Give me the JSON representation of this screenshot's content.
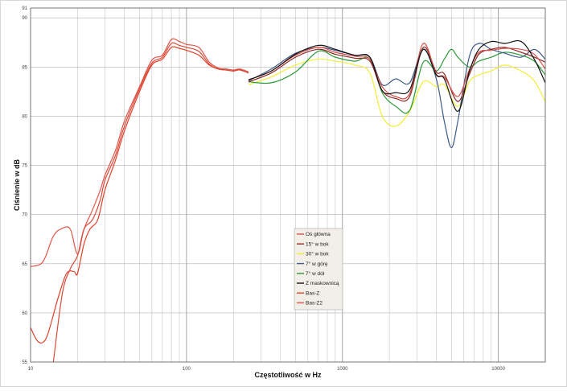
{
  "chart_data": {
    "type": "line",
    "xlabel": "Częstotliwość w Hz",
    "ylabel": "Ciśnienie w dB",
    "xscale": "log",
    "xlim": [
      10,
      20000
    ],
    "ylim": [
      55,
      91
    ],
    "x_ticks": [
      10,
      100,
      1000,
      10000
    ],
    "x_tick_labels": [
      "10",
      "100",
      "1000",
      "10000"
    ],
    "y_ticks": [
      55,
      60,
      65,
      70,
      75,
      80,
      85,
      90,
      91
    ],
    "y_tick_labels": [
      "55",
      "60",
      "65",
      "70",
      "75",
      "80",
      "85",
      "90",
      "91"
    ],
    "grid": true,
    "legend": {
      "position": "center-bottom"
    },
    "series": [
      {
        "name": "Oś główna",
        "color": "#d8504a",
        "points": [
          [
            250,
            83.7
          ],
          [
            350,
            84.6
          ],
          [
            500,
            86.2
          ],
          [
            700,
            87.0
          ],
          [
            900,
            86.5
          ],
          [
            1200,
            86.1
          ],
          [
            1500,
            85.8
          ],
          [
            1800,
            83.0
          ],
          [
            2200,
            82.0
          ],
          [
            2700,
            82.3
          ],
          [
            3300,
            87.4
          ],
          [
            4000,
            84.3
          ],
          [
            4500,
            84.0
          ],
          [
            5500,
            82.0
          ],
          [
            6500,
            84.7
          ],
          [
            7500,
            86.5
          ],
          [
            9000,
            86.7
          ],
          [
            11000,
            86.9
          ],
          [
            14000,
            86.8
          ],
          [
            17000,
            86.3
          ],
          [
            20000,
            84.8
          ]
        ]
      },
      {
        "name": "15° w bok",
        "color": "#8c2a26",
        "points": [
          [
            250,
            83.5
          ],
          [
            350,
            84.4
          ],
          [
            500,
            86.0
          ],
          [
            700,
            86.8
          ],
          [
            900,
            86.3
          ],
          [
            1200,
            85.9
          ],
          [
            1500,
            85.6
          ],
          [
            1800,
            82.6
          ],
          [
            2200,
            81.8
          ],
          [
            2700,
            82.0
          ],
          [
            3300,
            87.0
          ],
          [
            4000,
            84.5
          ],
          [
            4500,
            84.3
          ],
          [
            5500,
            81.5
          ],
          [
            6500,
            84.2
          ],
          [
            7500,
            86.3
          ],
          [
            9000,
            86.8
          ],
          [
            11000,
            87.0
          ],
          [
            14000,
            86.5
          ],
          [
            17000,
            86.0
          ],
          [
            20000,
            85.5
          ]
        ]
      },
      {
        "name": "30° w bok",
        "color": "#f2ee3a",
        "points": [
          [
            250,
            83.2
          ],
          [
            350,
            84.0
          ],
          [
            500,
            85.2
          ],
          [
            700,
            85.8
          ],
          [
            900,
            85.6
          ],
          [
            1200,
            85.2
          ],
          [
            1500,
            84.4
          ],
          [
            1800,
            80.0
          ],
          [
            2200,
            79.0
          ],
          [
            2700,
            80.5
          ],
          [
            3300,
            83.5
          ],
          [
            4000,
            83.0
          ],
          [
            4500,
            83.2
          ],
          [
            5500,
            81.0
          ],
          [
            6500,
            83.5
          ],
          [
            7500,
            84.2
          ],
          [
            9000,
            84.6
          ],
          [
            11000,
            85.2
          ],
          [
            14000,
            84.6
          ],
          [
            17000,
            83.6
          ],
          [
            20000,
            81.5
          ]
        ]
      },
      {
        "name": "7° w górę",
        "color": "#3e5a86",
        "points": [
          [
            250,
            83.6
          ],
          [
            350,
            84.8
          ],
          [
            500,
            86.4
          ],
          [
            700,
            87.0
          ],
          [
            900,
            86.7
          ],
          [
            1200,
            86.2
          ],
          [
            1500,
            86.0
          ],
          [
            1800,
            83.2
          ],
          [
            2200,
            83.8
          ],
          [
            2700,
            83.4
          ],
          [
            3300,
            86.8
          ],
          [
            4000,
            83.8
          ],
          [
            4500,
            79.5
          ],
          [
            5000,
            76.8
          ],
          [
            5500,
            79.5
          ],
          [
            6500,
            86.0
          ],
          [
            7500,
            87.4
          ],
          [
            9000,
            86.8
          ],
          [
            11000,
            86.4
          ],
          [
            14000,
            86.0
          ],
          [
            17000,
            86.8
          ],
          [
            20000,
            85.8
          ]
        ]
      },
      {
        "name": "7° w dół",
        "color": "#2e9a3a",
        "points": [
          [
            250,
            83.5
          ],
          [
            350,
            83.4
          ],
          [
            500,
            84.5
          ],
          [
            700,
            86.6
          ],
          [
            900,
            86.0
          ],
          [
            1200,
            85.6
          ],
          [
            1500,
            85.8
          ],
          [
            1800,
            82.4
          ],
          [
            2200,
            81.0
          ],
          [
            2700,
            80.6
          ],
          [
            3300,
            85.5
          ],
          [
            4000,
            84.6
          ],
          [
            4500,
            85.8
          ],
          [
            5000,
            86.8
          ],
          [
            5500,
            86.0
          ],
          [
            6500,
            85.0
          ],
          [
            7500,
            85.6
          ],
          [
            9000,
            86.0
          ],
          [
            11000,
            86.5
          ],
          [
            14000,
            86.2
          ],
          [
            17000,
            85.6
          ],
          [
            20000,
            84.2
          ]
        ]
      },
      {
        "name": "Z maskownicą",
        "color": "#111111",
        "points": [
          [
            250,
            83.7
          ],
          [
            350,
            84.6
          ],
          [
            500,
            86.3
          ],
          [
            700,
            87.2
          ],
          [
            900,
            86.8
          ],
          [
            1200,
            86.2
          ],
          [
            1500,
            86.0
          ],
          [
            1800,
            82.6
          ],
          [
            2200,
            82.4
          ],
          [
            2700,
            82.7
          ],
          [
            3300,
            86.8
          ],
          [
            4000,
            84.2
          ],
          [
            4500,
            83.8
          ],
          [
            5500,
            80.5
          ],
          [
            6500,
            84.5
          ],
          [
            7500,
            86.8
          ],
          [
            9000,
            87.6
          ],
          [
            11000,
            87.4
          ],
          [
            14000,
            87.6
          ],
          [
            17000,
            85.8
          ],
          [
            20000,
            83.4
          ]
        ]
      },
      {
        "name": "Bas-Z",
        "color": "#e0402a",
        "points": [
          [
            10,
            58.5
          ],
          [
            11,
            57.2
          ],
          [
            12,
            57.0
          ],
          [
            13,
            58.0
          ],
          [
            15,
            61.5
          ],
          [
            17,
            64.0
          ],
          [
            19,
            64.2
          ],
          [
            20,
            64.0
          ],
          [
            22,
            67.0
          ],
          [
            24,
            68.5
          ],
          [
            27,
            69.5
          ],
          [
            30,
            72.5
          ],
          [
            35,
            75.5
          ],
          [
            40,
            78.5
          ],
          [
            50,
            82.5
          ],
          [
            60,
            85.2
          ],
          [
            70,
            85.8
          ],
          [
            80,
            87.0
          ],
          [
            90,
            86.9
          ],
          [
            100,
            86.7
          ],
          [
            120,
            86.2
          ],
          [
            140,
            85.2
          ],
          [
            160,
            84.8
          ],
          [
            180,
            84.7
          ],
          [
            200,
            84.6
          ],
          [
            220,
            84.7
          ],
          [
            250,
            84.4
          ]
        ]
      },
      {
        "name": "Bas-Z2",
        "color": "#e05548",
        "points": [
          [
            10,
            64.7
          ],
          [
            12,
            65.2
          ],
          [
            14,
            67.8
          ],
          [
            16,
            68.6
          ],
          [
            18,
            68.5
          ],
          [
            20,
            66.0
          ],
          [
            22,
            68.5
          ],
          [
            25,
            70.5
          ],
          [
            28,
            72.5
          ],
          [
            30,
            74.0
          ],
          [
            35,
            76.5
          ],
          [
            40,
            79.5
          ],
          [
            50,
            83.0
          ],
          [
            60,
            85.7
          ],
          [
            70,
            86.2
          ],
          [
            80,
            87.8
          ],
          [
            90,
            87.6
          ],
          [
            100,
            87.3
          ],
          [
            120,
            87.0
          ],
          [
            140,
            85.5
          ],
          [
            160,
            84.9
          ],
          [
            180,
            84.8
          ],
          [
            200,
            84.7
          ],
          [
            220,
            84.8
          ],
          [
            250,
            84.5
          ]
        ]
      },
      {
        "name": "Bas-Z3",
        "color": "#d84a3a",
        "points": [
          [
            14,
            55.0
          ],
          [
            16,
            62.0
          ],
          [
            18,
            64.5
          ],
          [
            20,
            65.8
          ],
          [
            22,
            68.5
          ],
          [
            25,
            69.5
          ],
          [
            28,
            71.5
          ],
          [
            30,
            73.5
          ],
          [
            35,
            76.0
          ],
          [
            40,
            79.0
          ],
          [
            50,
            82.8
          ],
          [
            60,
            85.4
          ],
          [
            70,
            86.0
          ],
          [
            80,
            87.4
          ],
          [
            90,
            87.2
          ],
          [
            100,
            87.0
          ],
          [
            120,
            86.6
          ],
          [
            140,
            85.3
          ],
          [
            160,
            84.8
          ],
          [
            180,
            84.7
          ],
          [
            200,
            84.6
          ],
          [
            220,
            84.7
          ],
          [
            250,
            84.4
          ]
        ]
      }
    ]
  },
  "legend_entries": [
    {
      "label": "Oś główna",
      "color": "#d8504a"
    },
    {
      "label": "15° w bok",
      "color": "#8c2a26"
    },
    {
      "label": "30° w bok",
      "color": "#f2ee3a"
    },
    {
      "label": "7° w górę",
      "color": "#3e5a86"
    },
    {
      "label": "7° w dół",
      "color": "#2e9a3a"
    },
    {
      "label": "Z maskownicą",
      "color": "#111111"
    },
    {
      "label": "Bas-Z",
      "color": "#e0402a"
    },
    {
      "label": "Bas-Z2",
      "color": "#e05548"
    }
  ]
}
